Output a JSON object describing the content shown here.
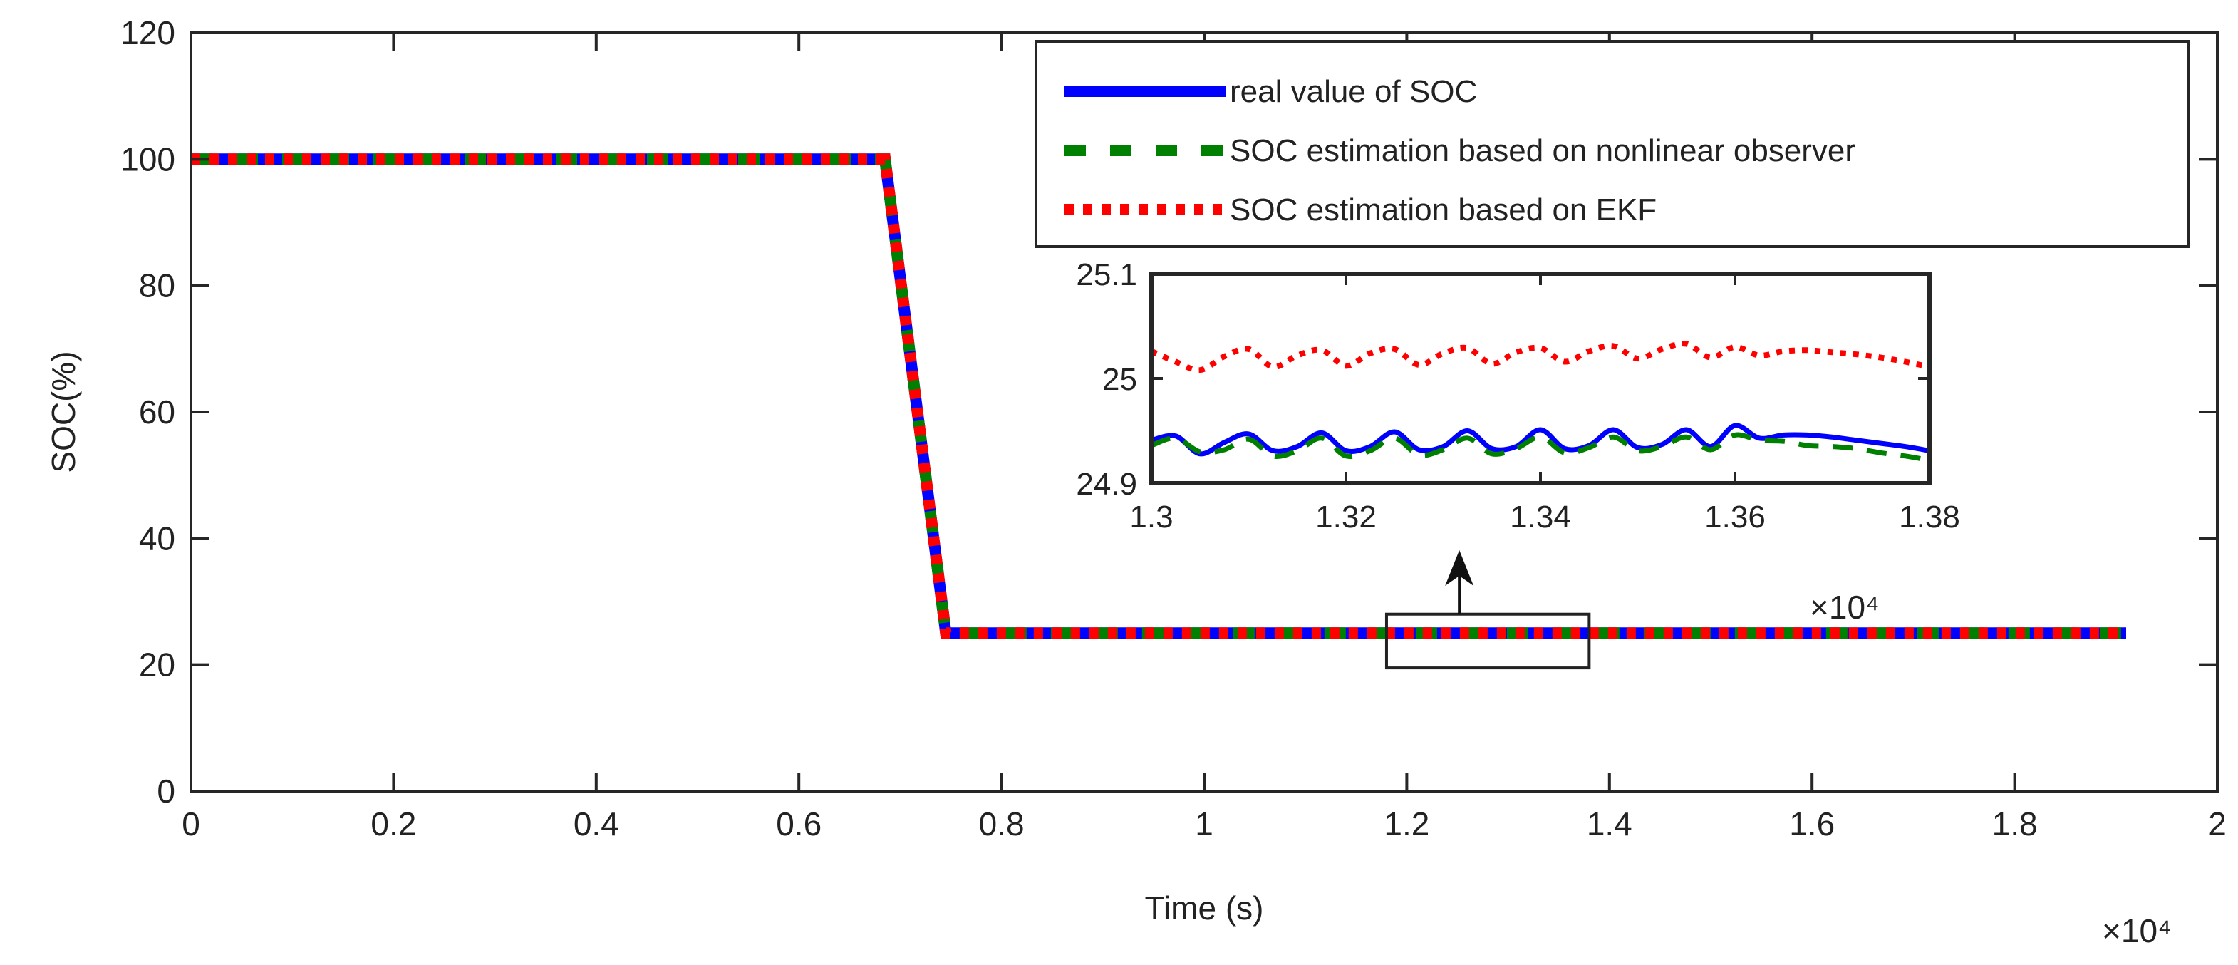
{
  "chart_data": {
    "type": "line",
    "xlabel": "Time (s)",
    "ylabel": "SOC(%)",
    "x_exponent_label": "×10⁴",
    "xlim": [
      0,
      20000
    ],
    "ylim": [
      0,
      120
    ],
    "xticks": [
      0,
      2000,
      4000,
      6000,
      8000,
      10000,
      12000,
      14000,
      16000,
      18000,
      20000
    ],
    "xtick_labels": [
      "0",
      "0.2",
      "0.4",
      "0.6",
      "0.8",
      "1",
      "1.2",
      "1.4",
      "1.6",
      "1.8",
      "2"
    ],
    "yticks": [
      0,
      20,
      40,
      60,
      80,
      100,
      120
    ],
    "ytick_labels": [
      "0",
      "20",
      "40",
      "60",
      "80",
      "100",
      "120"
    ],
    "grid": false,
    "legend_position": "top-right",
    "series": [
      {
        "name": "real value of SOC",
        "color": "#0000ff",
        "style": "solid",
        "x": [
          0,
          6850,
          7450,
          19100
        ],
        "y": [
          100,
          100,
          25,
          25
        ]
      },
      {
        "name": "SOC estimation based on nonlinear observer",
        "color": "#008000",
        "style": "dashed",
        "x": [
          0,
          6850,
          7450,
          19100
        ],
        "y": [
          100,
          100,
          25,
          25
        ]
      },
      {
        "name": "SOC estimation based on EKF",
        "color": "#ff0000",
        "style": "dotted",
        "x": [
          0,
          6850,
          7450,
          19100
        ],
        "y": [
          100,
          100,
          25,
          25
        ]
      }
    ],
    "zoom_box": {
      "x": [
        11800,
        13800
      ],
      "y": [
        19.5,
        28
      ]
    },
    "inset": {
      "xlim": [
        13000,
        13800
      ],
      "ylim": [
        24.9,
        25.1
      ],
      "x_exponent_label": "×10⁴",
      "xticks": [
        13000,
        13200,
        13400,
        13600,
        13800
      ],
      "xtick_labels": [
        "1.3",
        "1.32",
        "1.34",
        "1.36",
        "1.38"
      ],
      "yticks": [
        24.9,
        25,
        25.1
      ],
      "ytick_labels": [
        "24.9",
        "25",
        "25.1"
      ],
      "series": [
        {
          "name": "real value of SOC",
          "x": [
            13000,
            13025,
            13050,
            13075,
            13100,
            13125,
            13150,
            13175,
            13200,
            13225,
            13250,
            13275,
            13300,
            13325,
            13350,
            13375,
            13400,
            13425,
            13450,
            13475,
            13500,
            13525,
            13550,
            13575,
            13600,
            13625,
            13650,
            13675,
            13700,
            13725,
            13750,
            13775,
            13800
          ],
          "y": [
            24.941,
            24.945,
            24.928,
            24.939,
            24.947,
            24.931,
            24.935,
            24.948,
            24.931,
            24.935,
            24.949,
            24.932,
            24.935,
            24.95,
            24.933,
            24.935,
            24.951,
            24.933,
            24.936,
            24.951,
            24.934,
            24.937,
            24.951,
            24.935,
            24.955,
            24.943,
            24.946,
            24.946,
            24.944,
            24.941,
            24.938,
            24.935,
            24.931
          ]
        },
        {
          "name": "SOC estimation based on nonlinear observer",
          "x": [
            13000,
            13025,
            13050,
            13075,
            13100,
            13125,
            13150,
            13175,
            13200,
            13225,
            13250,
            13275,
            13300,
            13325,
            13350,
            13375,
            13400,
            13425,
            13450,
            13475,
            13500,
            13525,
            13550,
            13575,
            13600,
            13625,
            13650,
            13675,
            13700,
            13725,
            13750,
            13775,
            13800
          ],
          "y": [
            24.936,
            24.943,
            24.93,
            24.932,
            24.942,
            24.926,
            24.931,
            24.943,
            24.926,
            24.931,
            24.943,
            24.927,
            24.932,
            24.943,
            24.928,
            24.933,
            24.944,
            24.929,
            24.934,
            24.944,
            24.931,
            24.935,
            24.944,
            24.932,
            24.946,
            24.941,
            24.94,
            24.936,
            24.935,
            24.933,
            24.929,
            24.926,
            24.922
          ]
        },
        {
          "name": "SOC estimation based on EKF",
          "x": [
            13000,
            13025,
            13050,
            13075,
            13100,
            13125,
            13150,
            13175,
            13200,
            13225,
            13250,
            13275,
            13300,
            13325,
            13350,
            13375,
            13400,
            13425,
            13450,
            13475,
            13500,
            13525,
            13550,
            13575,
            13600,
            13625,
            13650,
            13675,
            13700,
            13725,
            13750,
            13775,
            13800
          ],
          "y": [
            25.026,
            25.016,
            25.008,
            25.021,
            25.028,
            25.011,
            25.022,
            25.027,
            25.012,
            25.024,
            25.028,
            25.013,
            25.024,
            25.029,
            25.014,
            25.025,
            25.029,
            25.016,
            25.026,
            25.031,
            25.019,
            25.028,
            25.033,
            25.02,
            25.03,
            25.022,
            25.026,
            25.027,
            25.025,
            25.023,
            25.02,
            25.016,
            25.011
          ]
        }
      ]
    }
  }
}
